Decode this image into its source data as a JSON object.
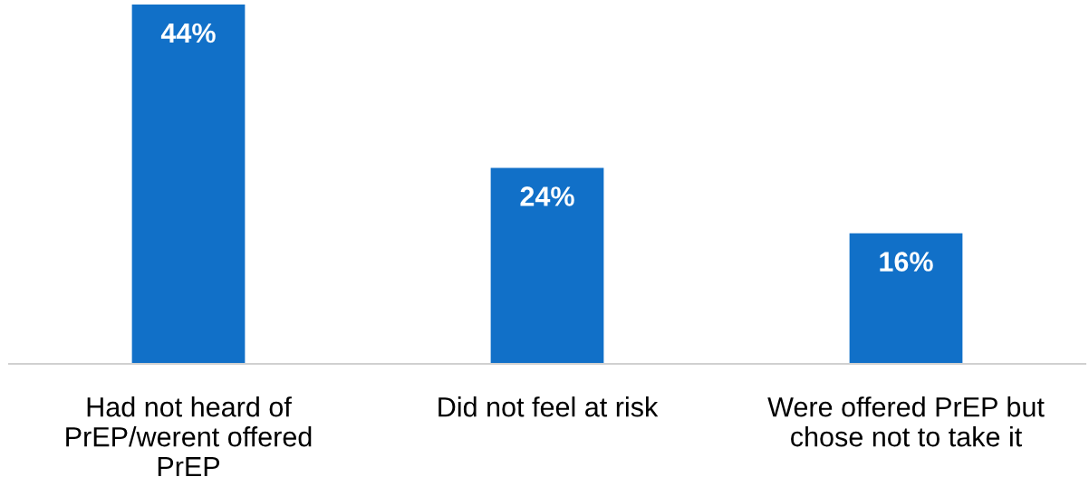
{
  "chart_data": {
    "type": "bar",
    "categories": [
      "Had not heard of PrEP/werent offered PrEP",
      "Did not feel at risk",
      "Were offered PrEP but chose not to take it"
    ],
    "values": [
      44,
      24,
      16
    ],
    "color": "#1170c8",
    "value_labels": [
      "44%",
      "24%",
      "16%"
    ],
    "grid": false
  }
}
